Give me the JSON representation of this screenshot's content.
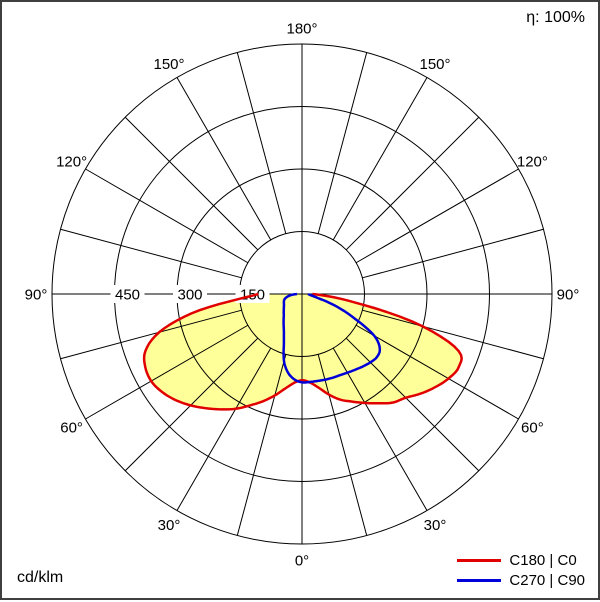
{
  "labels": {
    "efficiency": "η: 100%",
    "unit": "cd/klm"
  },
  "legend": [
    {
      "label": "C180 | C0",
      "color": "#e10000"
    },
    {
      "label": "C270 | C90",
      "color": "#0000d9"
    }
  ],
  "chart_data": {
    "type": "polar",
    "unit": "cd/klm",
    "efficiency": "η: 100%",
    "radial_max": 600,
    "grid_circles": [
      150,
      300,
      450,
      600
    ],
    "radial_ticks": [
      150,
      300,
      450
    ],
    "spoke_step_deg": 15,
    "angle_labels": [
      "0°",
      "30°",
      "60°",
      "90°",
      "120°",
      "150°",
      "180°"
    ],
    "series": [
      {
        "name": "C180 | C0",
        "color": "#e10000",
        "fill": "#ffff99",
        "angles_deg": [
          -90,
          -85,
          -80,
          -75,
          -70,
          -65,
          -60,
          -55,
          -50,
          -45,
          -40,
          -35,
          -30,
          -25,
          -20,
          -15,
          -10,
          -5,
          0,
          5,
          10,
          15,
          20,
          25,
          30,
          35,
          40,
          45,
          50,
          55,
          60,
          65,
          70,
          75,
          80,
          85,
          90
        ],
        "values": [
          105,
          160,
          270,
          355,
          400,
          415,
          418,
          410,
          396,
          378,
          358,
          338,
          318,
          295,
          274,
          252,
          230,
          214,
          207,
          213,
          228,
          250,
          270,
          285,
          302,
          320,
          340,
          352,
          372,
          390,
          406,
          415,
          400,
          300,
          150,
          65,
          25
        ]
      },
      {
        "name": "C270 | C90",
        "color": "#0000d9",
        "fill": null,
        "angles_deg": [
          -90,
          -85,
          -80,
          -75,
          -70,
          -65,
          -60,
          -55,
          -50,
          -45,
          -40,
          -35,
          -30,
          -25,
          -20,
          -15,
          -10,
          -5,
          0,
          5,
          10,
          15,
          20,
          25,
          30,
          35,
          40,
          45,
          50,
          55,
          60,
          65,
          70,
          75,
          80,
          85,
          90
        ],
        "values": [
          12,
          25,
          35,
          42,
          46,
          48,
          50,
          53,
          57,
          62,
          68,
          77,
          88,
          103,
          127,
          167,
          192,
          206,
          212,
          212,
          212,
          213,
          214,
          215,
          218,
          222,
          227,
          232,
          235,
          228,
          200,
          140,
          90,
          45,
          25,
          18,
          15
        ]
      }
    ]
  }
}
